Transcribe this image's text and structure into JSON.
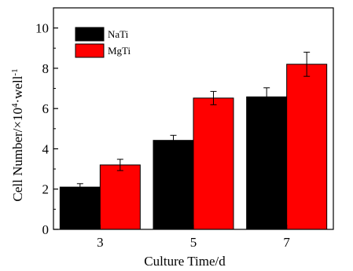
{
  "chart_data": {
    "type": "bar",
    "xlabel": "Culture Time/d",
    "ylabel": {
      "pre": "Cell Number/",
      "times": "×",
      "base": "10",
      "exp1": "4",
      "dot": "·",
      "well": "well",
      "exp2": "-1"
    },
    "categories": [
      "3",
      "5",
      "7"
    ],
    "series": [
      {
        "name": "NaTi",
        "color": "#000000",
        "values": [
          2.1,
          4.42,
          6.58
        ],
        "errors": [
          0.17,
          0.25,
          0.45
        ]
      },
      {
        "name": "MgTi",
        "color": "#ff0000",
        "values": [
          3.2,
          6.52,
          8.2
        ],
        "errors": [
          0.28,
          0.33,
          0.6
        ]
      }
    ],
    "ylim": [
      0,
      11
    ],
    "yticks": [
      0,
      2,
      4,
      6,
      8,
      10
    ],
    "legend_position": "top-left",
    "grid": false
  }
}
